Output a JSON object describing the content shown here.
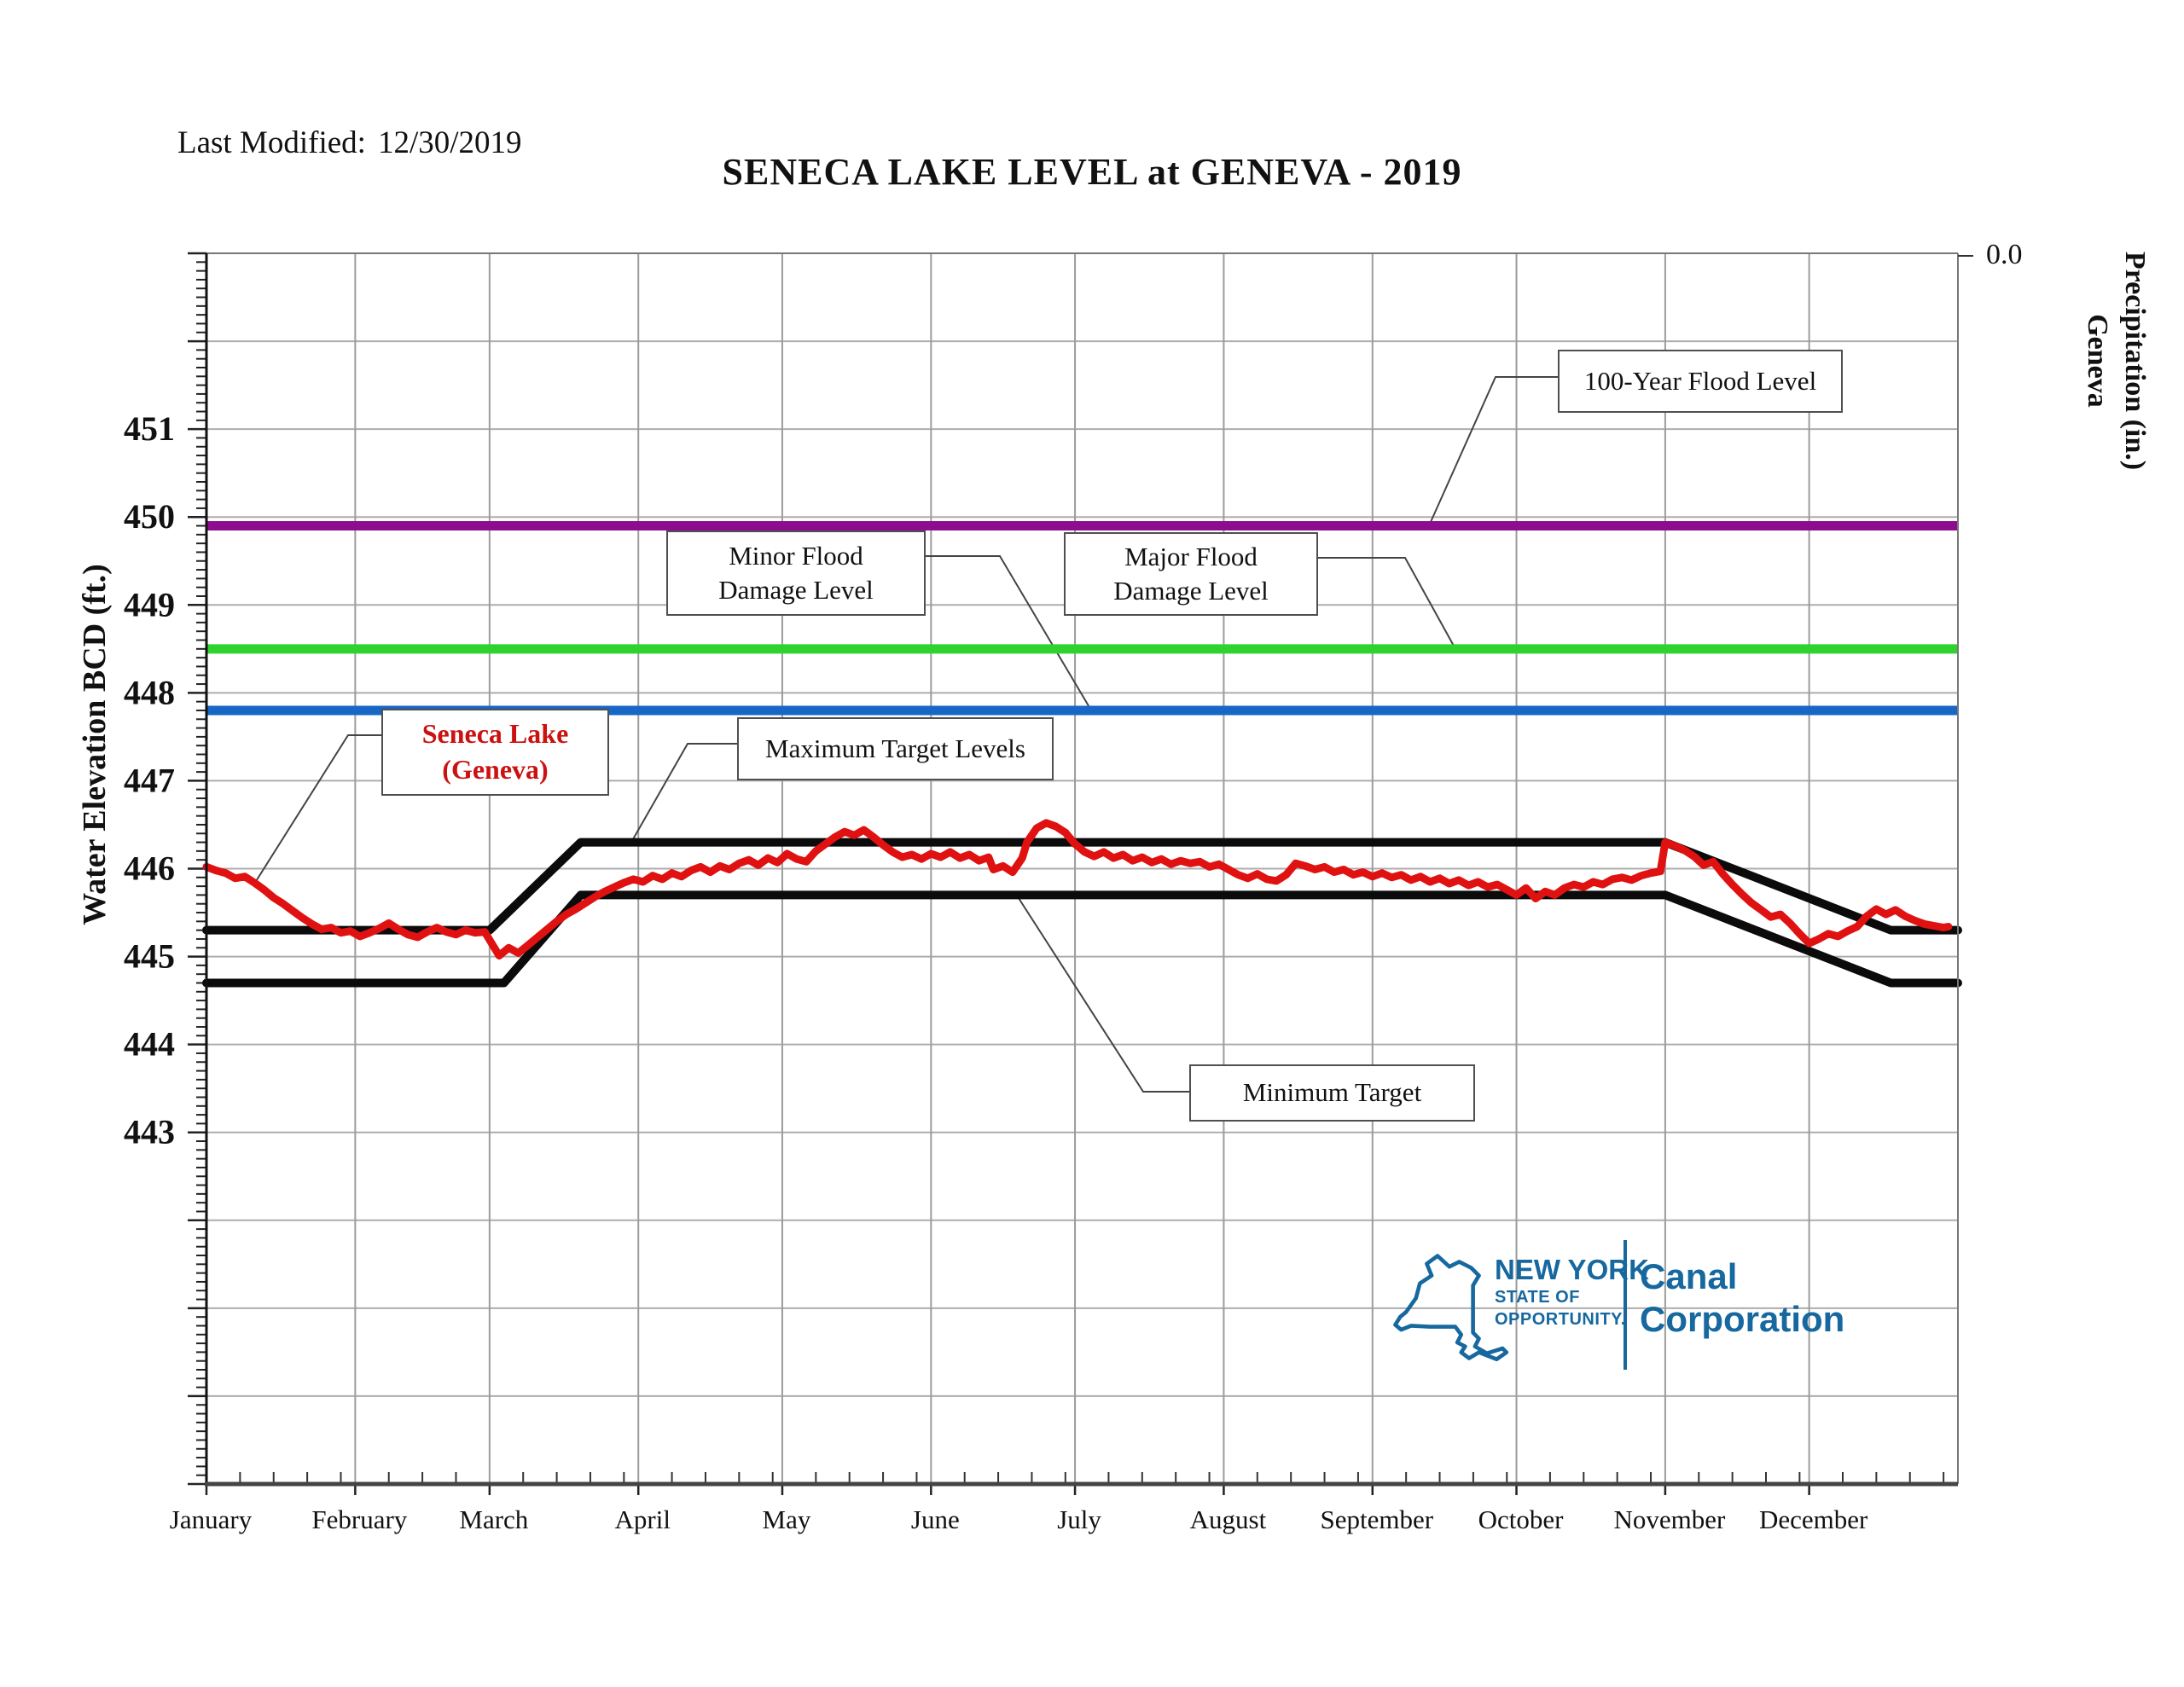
{
  "header": {
    "last_modified_label": "Last Modified:",
    "last_modified_date": "12/30/2019",
    "title": "SENECA LAKE LEVEL at GENEVA - 2019"
  },
  "chart_data": {
    "type": "line",
    "title": "SENECA LAKE LEVEL at GENEVA - 2019",
    "xlabel": "",
    "ylabel": "Water Elevation BCD (ft.)",
    "ylim": [
      439,
      453
    ],
    "grid": true,
    "y_axis": {
      "label": "Water Elevation BCD (ft.)",
      "min": 439,
      "max": 453,
      "gridline_step": 1,
      "tick_labels": [
        451,
        450,
        449,
        448,
        447,
        446,
        445,
        444,
        443
      ]
    },
    "y2_axis": {
      "label_line1": "Geneva",
      "label_line2": "Precipitation (in.)",
      "top_tick_label": "0.0"
    },
    "x_axis": {
      "month_labels": [
        "January",
        "February",
        "March",
        "April",
        "May",
        "June",
        "July",
        "August",
        "September",
        "October",
        "November",
        "December"
      ],
      "month_start_days": [
        0,
        31,
        59,
        90,
        120,
        151,
        181,
        212,
        243,
        273,
        304,
        334
      ],
      "days_in_year": 365
    },
    "reference_lines": [
      {
        "id": "flood_100yr",
        "label": "100-Year Flood Level",
        "value": 449.9,
        "color": "#8E0D8E"
      },
      {
        "id": "major_flood",
        "label": "Major Flood Damage Level",
        "value": 448.5,
        "color": "#2FD32F"
      },
      {
        "id": "minor_flood",
        "label": "Minor Flood Damage Level",
        "value": 447.8,
        "color": "#1767C5"
      }
    ],
    "series": [
      {
        "id": "max_target",
        "name": "Maximum Target Levels",
        "color": "#0B0B0B",
        "width": 10,
        "points": [
          [
            0,
            445.3
          ],
          [
            59,
            445.3
          ],
          [
            78,
            446.3
          ],
          [
            304,
            446.3
          ],
          [
            351,
            445.3
          ],
          [
            365,
            445.3
          ]
        ]
      },
      {
        "id": "min_target",
        "name": "Minimum Target",
        "color": "#0B0B0B",
        "width": 10,
        "points": [
          [
            0,
            444.7
          ],
          [
            62,
            444.7
          ],
          [
            78,
            445.7
          ],
          [
            304,
            445.7
          ],
          [
            351,
            444.7
          ],
          [
            365,
            444.7
          ]
        ]
      },
      {
        "id": "lake_level",
        "name": "Seneca Lake (Geneva)",
        "color": "#E01111",
        "width": 9,
        "points": [
          [
            0,
            446.02
          ],
          [
            2,
            445.98
          ],
          [
            4,
            445.95
          ],
          [
            6,
            445.89
          ],
          [
            8,
            445.91
          ],
          [
            10,
            445.84
          ],
          [
            12,
            445.76
          ],
          [
            14,
            445.67
          ],
          [
            16,
            445.6
          ],
          [
            18,
            445.52
          ],
          [
            20,
            445.44
          ],
          [
            22,
            445.37
          ],
          [
            24,
            445.31
          ],
          [
            26,
            445.33
          ],
          [
            28,
            445.27
          ],
          [
            30,
            445.29
          ],
          [
            32,
            445.23
          ],
          [
            34,
            445.27
          ],
          [
            36,
            445.32
          ],
          [
            38,
            445.38
          ],
          [
            40,
            445.31
          ],
          [
            42,
            445.25
          ],
          [
            44,
            445.22
          ],
          [
            46,
            445.28
          ],
          [
            48,
            445.33
          ],
          [
            50,
            445.28
          ],
          [
            52,
            445.25
          ],
          [
            54,
            445.3
          ],
          [
            56,
            445.27
          ],
          [
            58,
            445.28
          ],
          [
            60,
            445.1
          ],
          [
            61,
            445.01
          ],
          [
            63,
            445.1
          ],
          [
            65,
            445.04
          ],
          [
            67,
            445.13
          ],
          [
            69,
            445.22
          ],
          [
            71,
            445.31
          ],
          [
            73,
            445.4
          ],
          [
            75,
            445.48
          ],
          [
            77,
            445.54
          ],
          [
            79,
            445.61
          ],
          [
            81,
            445.68
          ],
          [
            83,
            445.74
          ],
          [
            85,
            445.79
          ],
          [
            87,
            445.84
          ],
          [
            89,
            445.88
          ],
          [
            91,
            445.85
          ],
          [
            93,
            445.92
          ],
          [
            95,
            445.88
          ],
          [
            97,
            445.95
          ],
          [
            99,
            445.91
          ],
          [
            101,
            445.98
          ],
          [
            103,
            446.02
          ],
          [
            105,
            445.96
          ],
          [
            107,
            446.03
          ],
          [
            109,
            445.99
          ],
          [
            111,
            446.06
          ],
          [
            113,
            446.1
          ],
          [
            115,
            446.04
          ],
          [
            117,
            446.12
          ],
          [
            119,
            446.07
          ],
          [
            121,
            446.17
          ],
          [
            123,
            446.11
          ],
          [
            125,
            446.08
          ],
          [
            127,
            446.2
          ],
          [
            129,
            446.28
          ],
          [
            131,
            446.36
          ],
          [
            133,
            446.42
          ],
          [
            135,
            446.38
          ],
          [
            137,
            446.44
          ],
          [
            139,
            446.36
          ],
          [
            141,
            446.27
          ],
          [
            143,
            446.19
          ],
          [
            145,
            446.13
          ],
          [
            147,
            446.16
          ],
          [
            149,
            446.11
          ],
          [
            151,
            446.17
          ],
          [
            153,
            446.13
          ],
          [
            155,
            446.19
          ],
          [
            157,
            446.12
          ],
          [
            159,
            446.16
          ],
          [
            161,
            446.09
          ],
          [
            163,
            446.13
          ],
          [
            164,
            445.99
          ],
          [
            166,
            446.03
          ],
          [
            168,
            445.96
          ],
          [
            170,
            446.12
          ],
          [
            171,
            446.3
          ],
          [
            173,
            446.46
          ],
          [
            175,
            446.52
          ],
          [
            177,
            446.48
          ],
          [
            179,
            446.41
          ],
          [
            181,
            446.28
          ],
          [
            183,
            446.19
          ],
          [
            185,
            446.14
          ],
          [
            187,
            446.19
          ],
          [
            189,
            446.12
          ],
          [
            191,
            446.16
          ],
          [
            193,
            446.09
          ],
          [
            195,
            446.13
          ],
          [
            197,
            446.07
          ],
          [
            199,
            446.11
          ],
          [
            201,
            446.05
          ],
          [
            203,
            446.09
          ],
          [
            205,
            446.06
          ],
          [
            207,
            446.08
          ],
          [
            209,
            446.02
          ],
          [
            211,
            446.05
          ],
          [
            213,
            445.99
          ],
          [
            215,
            445.93
          ],
          [
            217,
            445.89
          ],
          [
            219,
            445.94
          ],
          [
            221,
            445.88
          ],
          [
            223,
            445.86
          ],
          [
            225,
            445.93
          ],
          [
            227,
            446.06
          ],
          [
            229,
            446.03
          ],
          [
            231,
            445.99
          ],
          [
            233,
            446.02
          ],
          [
            235,
            445.96
          ],
          [
            237,
            445.99
          ],
          [
            239,
            445.93
          ],
          [
            241,
            445.96
          ],
          [
            243,
            445.91
          ],
          [
            245,
            445.95
          ],
          [
            247,
            445.9
          ],
          [
            249,
            445.93
          ],
          [
            251,
            445.87
          ],
          [
            253,
            445.91
          ],
          [
            255,
            445.85
          ],
          [
            257,
            445.89
          ],
          [
            259,
            445.83
          ],
          [
            261,
            445.87
          ],
          [
            263,
            445.81
          ],
          [
            265,
            445.85
          ],
          [
            267,
            445.79
          ],
          [
            269,
            445.82
          ],
          [
            271,
            445.76
          ],
          [
            273,
            445.7
          ],
          [
            275,
            445.78
          ],
          [
            277,
            445.66
          ],
          [
            279,
            445.74
          ],
          [
            281,
            445.7
          ],
          [
            283,
            445.78
          ],
          [
            285,
            445.82
          ],
          [
            287,
            445.79
          ],
          [
            289,
            445.85
          ],
          [
            291,
            445.82
          ],
          [
            293,
            445.88
          ],
          [
            295,
            445.9
          ],
          [
            297,
            445.87
          ],
          [
            299,
            445.92
          ],
          [
            301,
            445.95
          ],
          [
            303,
            445.97
          ],
          [
            304,
            446.3
          ],
          [
            306,
            446.26
          ],
          [
            308,
            446.21
          ],
          [
            310,
            446.14
          ],
          [
            312,
            446.04
          ],
          [
            314,
            446.08
          ],
          [
            316,
            445.94
          ],
          [
            318,
            445.82
          ],
          [
            320,
            445.71
          ],
          [
            322,
            445.61
          ],
          [
            324,
            445.53
          ],
          [
            326,
            445.45
          ],
          [
            328,
            445.48
          ],
          [
            330,
            445.38
          ],
          [
            332,
            445.26
          ],
          [
            334,
            445.15
          ],
          [
            336,
            445.2
          ],
          [
            338,
            445.26
          ],
          [
            340,
            445.23
          ],
          [
            342,
            445.29
          ],
          [
            344,
            445.34
          ],
          [
            346,
            445.46
          ],
          [
            348,
            445.54
          ],
          [
            350,
            445.48
          ],
          [
            352,
            445.53
          ],
          [
            354,
            445.46
          ],
          [
            356,
            445.41
          ],
          [
            358,
            445.37
          ],
          [
            360,
            445.35
          ],
          [
            362,
            445.33
          ],
          [
            363,
            445.34
          ]
        ]
      }
    ],
    "annotations": [
      {
        "id": "callout-100yr",
        "line1": "100-Year Flood Level",
        "line2": ""
      },
      {
        "id": "callout-minor-flood",
        "line1": "Minor Flood",
        "line2": "Damage Level"
      },
      {
        "id": "callout-major-flood",
        "line1": "Major Flood",
        "line2": "Damage Level"
      },
      {
        "id": "callout-seneca-lake",
        "line1": "Seneca Lake",
        "line2": "(Geneva)"
      },
      {
        "id": "callout-max-target",
        "line1": "Maximum Target Levels",
        "line2": ""
      },
      {
        "id": "callout-min-target",
        "line1": "Minimum Target",
        "line2": ""
      }
    ]
  },
  "labels": {
    "flood100": "100-Year Flood Level",
    "minor1": "Minor Flood",
    "minor2": "Damage Level",
    "major1": "Major Flood",
    "major2": "Damage Level",
    "seneca1": "Seneca Lake",
    "seneca2": "(Geneva)",
    "max_target": "Maximum Target Levels",
    "min_target": "Minimum Target"
  },
  "logo": {
    "state_name": "NEW YORK",
    "tagline1": "STATE OF",
    "tagline2": "OPPORTUNITY.",
    "org_line1": "Canal",
    "org_line2": "Corporation",
    "color": "#16689F"
  }
}
